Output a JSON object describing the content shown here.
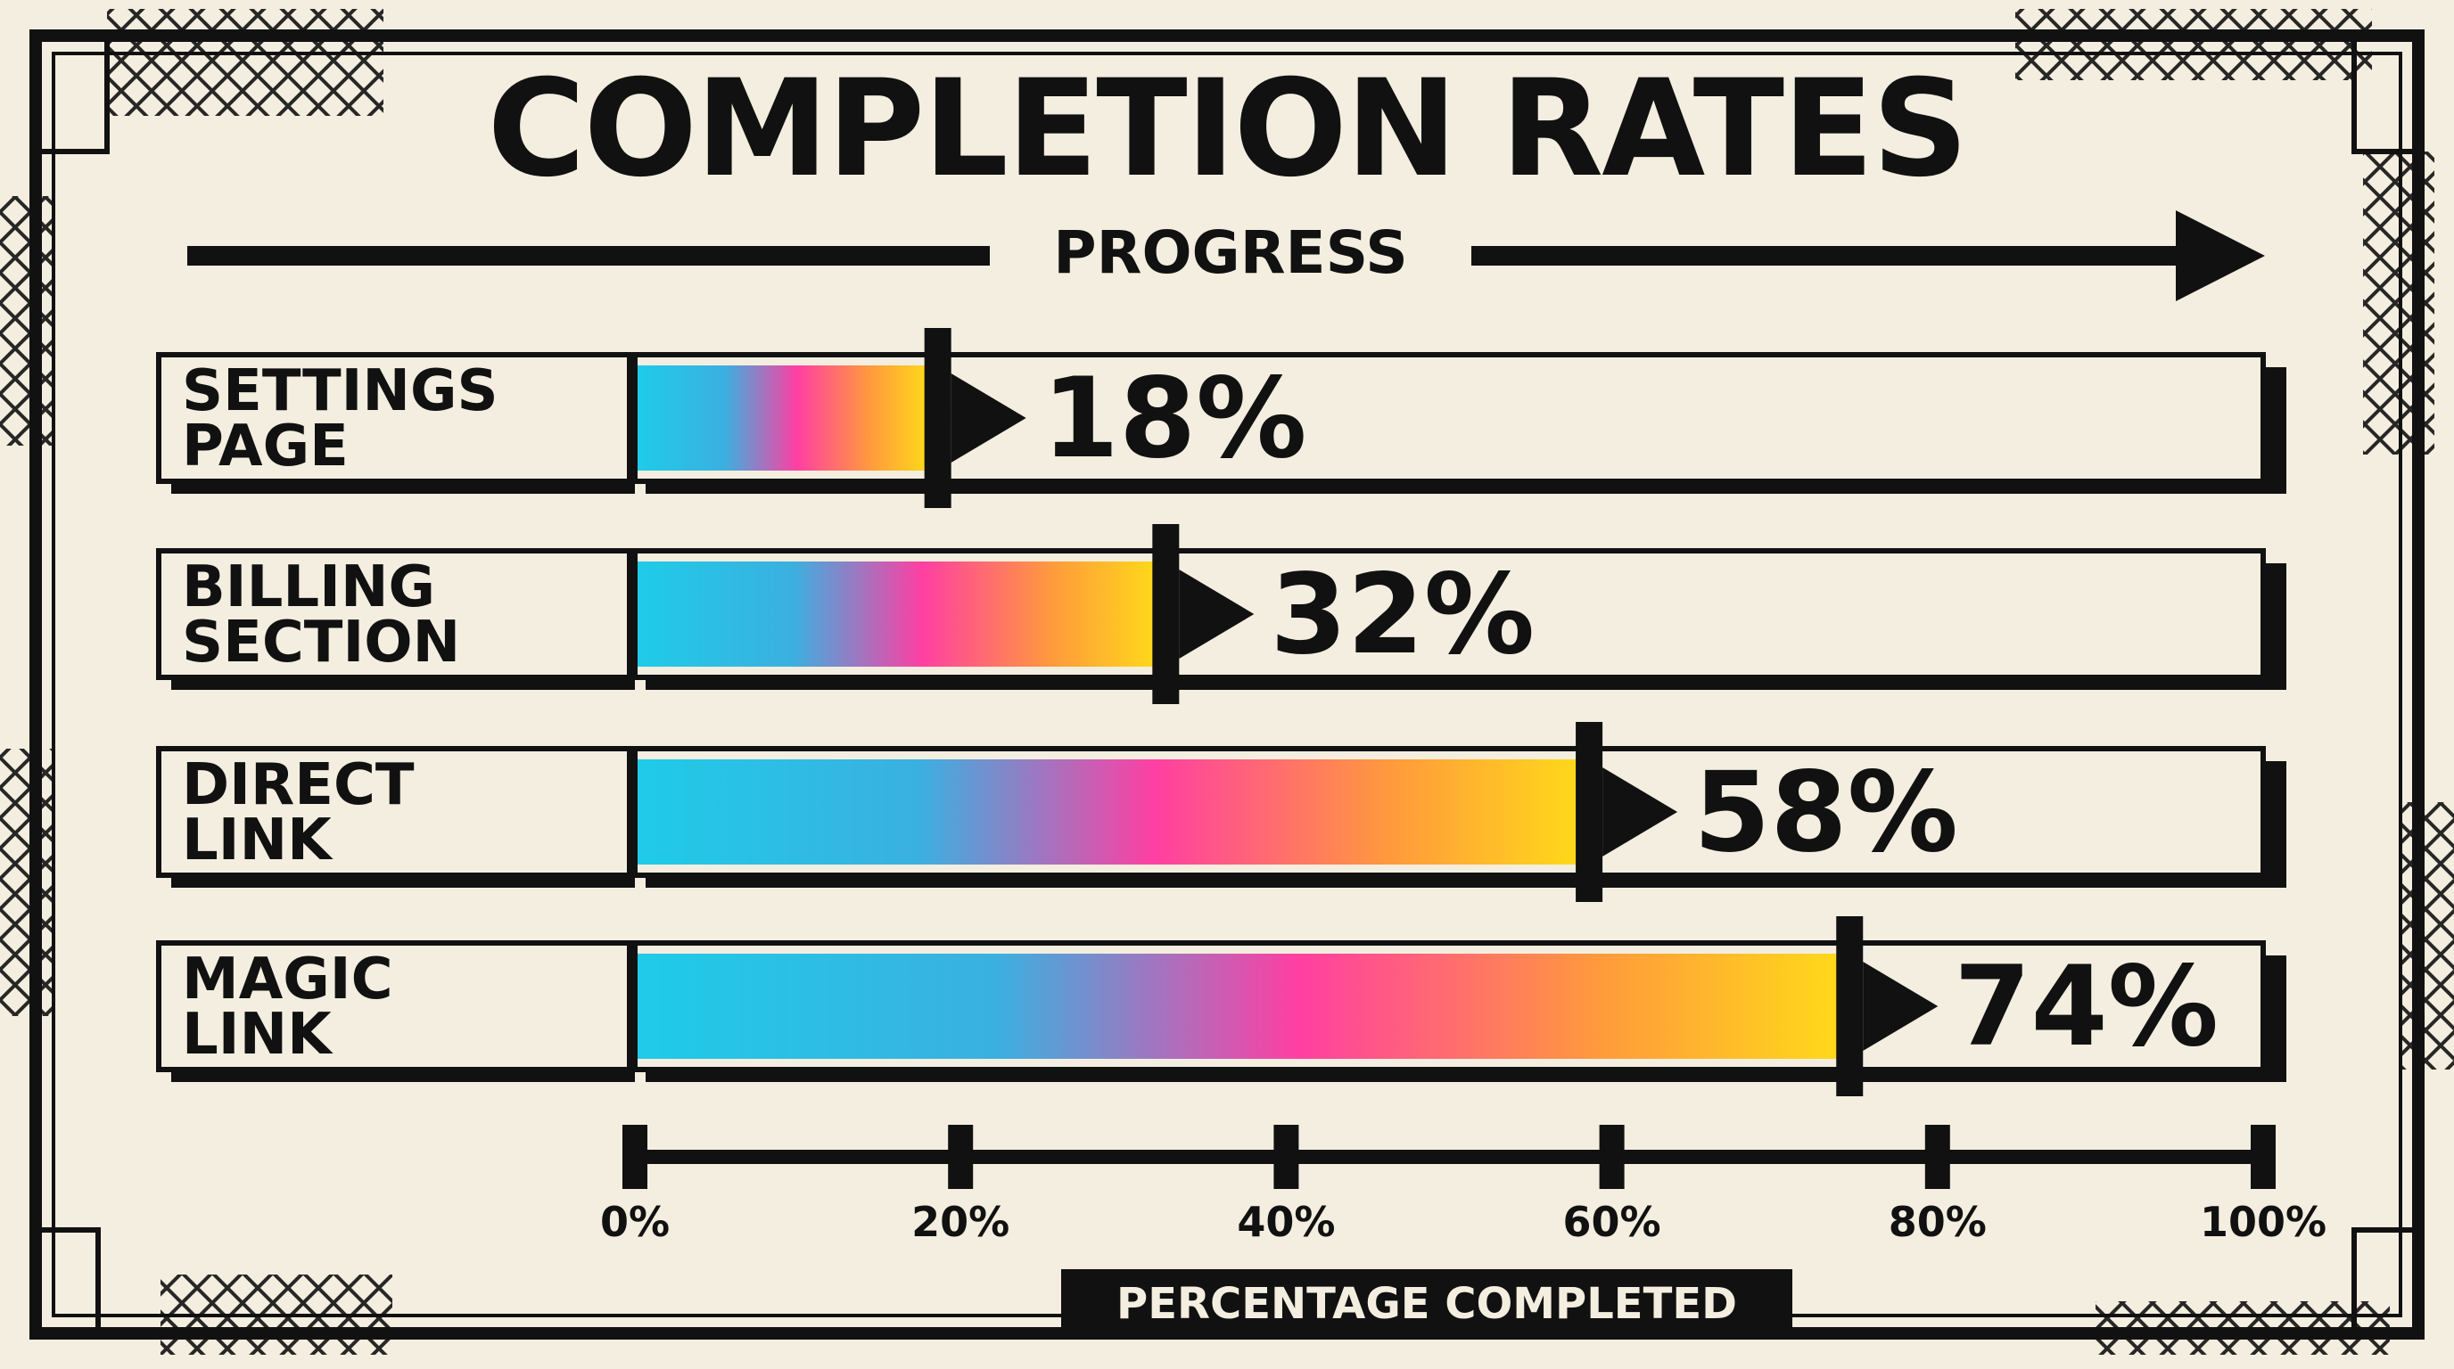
{
  "chart_data": {
    "type": "bar",
    "orientation": "horizontal",
    "title": "COMPLETION RATES",
    "subtitle": "PROGRESS",
    "xlabel": "PERCENTAGE COMPLETED",
    "categories": [
      "SETTINGS PAGE",
      "BILLING SECTION",
      "DIRECT LINK",
      "MAGIC LINK"
    ],
    "category_lines": [
      [
        "SETTINGS",
        "PAGE"
      ],
      [
        "BILLING",
        "SECTION"
      ],
      [
        "DIRECT",
        "LINK"
      ],
      [
        "MAGIC",
        "LINK"
      ]
    ],
    "values": [
      18,
      32,
      58,
      74
    ],
    "value_labels": [
      "18%",
      "32%",
      "58%",
      "74%"
    ],
    "xlim": [
      0,
      100
    ],
    "ticks": [
      0,
      20,
      40,
      60,
      80,
      100
    ],
    "tick_labels": [
      "0%",
      "20%",
      "40%",
      "60%",
      "80%",
      "100%"
    ],
    "grid": false,
    "legend": "none",
    "gradient_colors": [
      "#1fcbe8",
      "#ff3fa2",
      "#ffd91a"
    ],
    "colors": {
      "background": "#f3eedf",
      "ink": "#111111"
    }
  }
}
